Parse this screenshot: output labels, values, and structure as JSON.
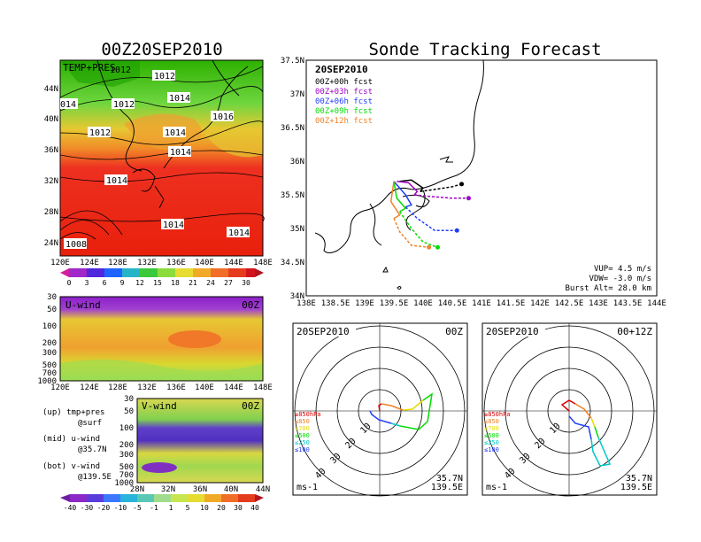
{
  "left_title": "00Z20SEP2010",
  "main_title": "Sonde Tracking Forecast",
  "temp_panel": {
    "label": "TEMP+PRES",
    "lat_ticks": [
      "44N",
      "40N",
      "36N",
      "32N",
      "28N",
      "24N"
    ],
    "lon_ticks": [
      "120E",
      "124E",
      "128E",
      "132E",
      "136E",
      "140E",
      "144E",
      "148E"
    ],
    "isobar_labels": [
      "1012",
      "1012",
      "1014",
      "1016",
      "014",
      "1012",
      "1012",
      "1014",
      "1014",
      "1014",
      "1014",
      "1008",
      "1014"
    ]
  },
  "temp_colorbar": {
    "ticks": [
      "0",
      "3",
      "6",
      "9",
      "12",
      "15",
      "18",
      "21",
      "24",
      "27",
      "30"
    ]
  },
  "uwind_panel": {
    "label": "U-wind",
    "time": "00Z",
    "p_ticks": [
      "30",
      "50",
      "100",
      "200",
      "300",
      "500",
      "700",
      "1000"
    ],
    "lon_ticks": [
      "120E",
      "124E",
      "128E",
      "132E",
      "136E",
      "140E",
      "144E",
      "148E"
    ]
  },
  "vwind_panel": {
    "label": "V-wind",
    "time": "00Z",
    "p_ticks": [
      "30",
      "50",
      "100",
      "200",
      "300",
      "500",
      "700",
      "1000"
    ],
    "lat_ticks": [
      "28N",
      "32N",
      "36N",
      "40N",
      "44N"
    ]
  },
  "wind_colorbar": {
    "ticks": [
      "-40",
      "-30",
      "-20",
      "-10",
      "-5",
      "-1",
      "1",
      "5",
      "10",
      "20",
      "30",
      "40"
    ]
  },
  "notes": [
    {
      "a": "(up) tmp+pres",
      "b": "@surf"
    },
    {
      "a": "(mid) u-wind",
      "b": "@35.7N"
    },
    {
      "a": "(bot) v-wind",
      "b": "@139.5E"
    }
  ],
  "track_map": {
    "date": "20SEP2010",
    "legend": [
      {
        "label": "00Z+00h fcst",
        "color": "#000000"
      },
      {
        "label": "00Z+03h fcst",
        "color": "#a000c8"
      },
      {
        "label": "00Z+06h fcst",
        "color": "#1e3cff"
      },
      {
        "label": "00Z+09h fcst",
        "color": "#00dc00"
      },
      {
        "label": "00Z+12h fcst",
        "color": "#f08228"
      }
    ],
    "vup": "VUP= 4.5 m/s",
    "vdw": "VDW= -3.0 m/s",
    "burst": "Burst Alt= 28.0 km"
  },
  "chart_data": {
    "type": "line",
    "title": "Sonde Tracking Forecast",
    "xlabel": "",
    "ylabel": "",
    "xlim": [
      138,
      144
    ],
    "ylim": [
      34,
      37.5
    ],
    "x_ticks": [
      "138E",
      "138.5E",
      "139E",
      "139.5E",
      "140E",
      "140.5E",
      "141E",
      "141.5E",
      "142E",
      "142.5E",
      "143E",
      "143.5E",
      "144E"
    ],
    "y_ticks": [
      "34N",
      "34.5N",
      "35N",
      "35.5N",
      "36N",
      "36.5N",
      "37N",
      "37.5N"
    ],
    "series": [
      {
        "name": "00Z+00h fcst",
        "color": "#000000",
        "ascent": [
          [
            139.6,
            35.7
          ],
          [
            139.8,
            35.72
          ],
          [
            140.0,
            35.6
          ],
          [
            139.95,
            35.55
          ]
        ],
        "descent": [
          [
            139.95,
            35.55
          ],
          [
            140.2,
            35.58
          ],
          [
            140.5,
            35.62
          ],
          [
            140.66,
            35.66
          ]
        ]
      },
      {
        "name": "00Z+03h fcst",
        "color": "#a000c8",
        "ascent": [
          [
            139.55,
            35.7
          ],
          [
            139.75,
            35.68
          ],
          [
            139.9,
            35.55
          ],
          [
            139.85,
            35.5
          ]
        ],
        "descent": [
          [
            139.85,
            35.5
          ],
          [
            140.2,
            35.47
          ],
          [
            140.5,
            35.45
          ],
          [
            140.78,
            35.45
          ]
        ]
      },
      {
        "name": "00Z+06h fcst",
        "color": "#1e3cff",
        "ascent": [
          [
            139.5,
            35.7
          ],
          [
            139.7,
            35.5
          ],
          [
            139.8,
            35.35
          ],
          [
            139.7,
            35.32
          ]
        ],
        "descent": [
          [
            139.7,
            35.32
          ],
          [
            139.9,
            35.15
          ],
          [
            140.2,
            34.97
          ],
          [
            140.58,
            34.97
          ]
        ]
      },
      {
        "name": "00Z+09h fcst",
        "color": "#00dc00",
        "ascent": [
          [
            139.5,
            35.7
          ],
          [
            139.55,
            35.45
          ],
          [
            139.7,
            35.3
          ],
          [
            139.6,
            35.25
          ]
        ],
        "descent": [
          [
            139.6,
            35.25
          ],
          [
            139.8,
            35.0
          ],
          [
            140.0,
            34.8
          ],
          [
            140.25,
            34.72
          ]
        ]
      },
      {
        "name": "00Z+12h fcst",
        "color": "#f08228",
        "ascent": [
          [
            139.5,
            35.7
          ],
          [
            139.45,
            35.4
          ],
          [
            139.6,
            35.2
          ],
          [
            139.5,
            35.15
          ]
        ],
        "descent": [
          [
            139.5,
            35.15
          ],
          [
            139.6,
            34.95
          ],
          [
            139.8,
            34.75
          ],
          [
            140.1,
            34.72
          ]
        ]
      }
    ]
  },
  "hodo_left": {
    "date": "20SEP2010",
    "time": "00Z",
    "lat": "35.7N",
    "lon": "139.5E",
    "unit": "ms-1",
    "ring_labels": [
      "10",
      "20",
      "30",
      "40"
    ],
    "levels": [
      {
        "label": "≥850hPa",
        "color": "#dc0000"
      },
      {
        "label": "≤850",
        "color": "#f08228"
      },
      {
        "label": "≤700",
        "color": "#e6dc00"
      },
      {
        "label": "≤500",
        "color": "#00dc00"
      },
      {
        "label": "≤250",
        "color": "#00c8c8"
      },
      {
        "label": "≤100",
        "color": "#1e3cff"
      }
    ]
  },
  "hodo_right": {
    "date": "20SEP2010",
    "time": "00+12Z",
    "lat": "35.7N",
    "lon": "139.5E",
    "unit": "ms-1",
    "ring_labels": [
      "10",
      "20",
      "30",
      "40"
    ],
    "levels": [
      {
        "label": "≥850hPa",
        "color": "#dc0000"
      },
      {
        "label": "≤850",
        "color": "#f08228"
      },
      {
        "label": "≤700",
        "color": "#e6dc00"
      },
      {
        "label": "≤500",
        "color": "#00dc00"
      },
      {
        "label": "≤250",
        "color": "#00c8c8"
      },
      {
        "label": "≤100",
        "color": "#1e3cff"
      }
    ]
  }
}
